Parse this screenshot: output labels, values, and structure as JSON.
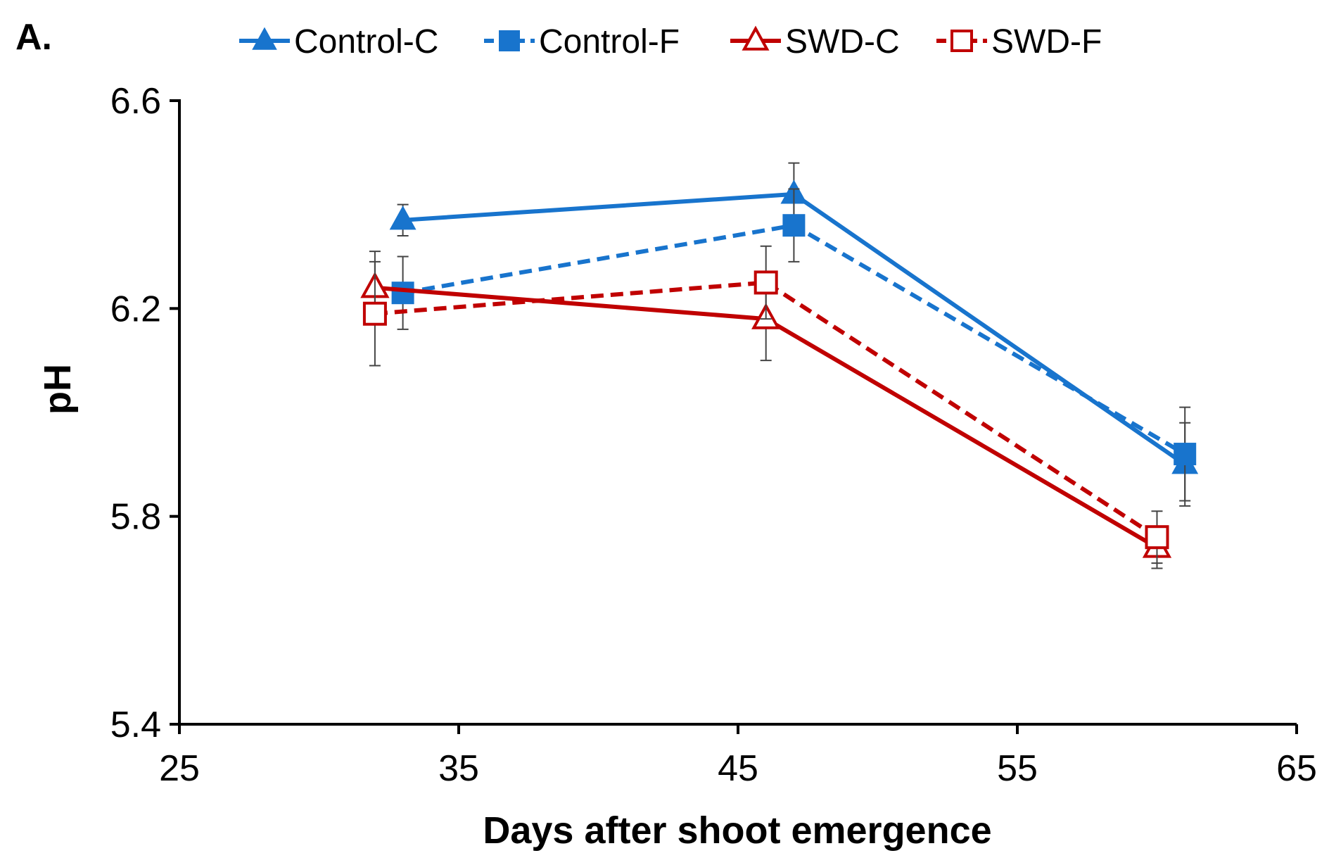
{
  "panel_label": "A.",
  "chart_data": {
    "type": "line",
    "xlabel": "Days after shoot emergence",
    "ylabel": "pH",
    "xlim": [
      25,
      65
    ],
    "ylim": [
      5.4,
      6.6
    ],
    "x_ticks": [
      25,
      35,
      45,
      55,
      65
    ],
    "y_ticks": [
      5.4,
      5.8,
      6.2,
      6.6
    ],
    "x_tick_labels": [
      "25",
      "35",
      "45",
      "55",
      "65"
    ],
    "y_tick_labels": [
      "5.4",
      "5.8",
      "6.2",
      "6.6"
    ],
    "grid": false,
    "legend_position": "top",
    "series": [
      {
        "name": "Control-C",
        "color": "#1874CD",
        "line": "solid",
        "marker": "triangle",
        "filled": true,
        "x": [
          33,
          47,
          61
        ],
        "y": [
          6.37,
          6.42,
          5.9
        ],
        "err": [
          0.03,
          0.06,
          0.08
        ]
      },
      {
        "name": "Control-F",
        "color": "#1874CD",
        "line": "dashed",
        "marker": "square",
        "filled": true,
        "x": [
          33,
          47,
          61
        ],
        "y": [
          6.23,
          6.36,
          5.92
        ],
        "err": [
          0.07,
          0.07,
          0.09
        ]
      },
      {
        "name": "SWD-C",
        "color": "#C00000",
        "line": "solid",
        "marker": "triangle",
        "filled": false,
        "x": [
          32,
          46,
          60
        ],
        "y": [
          6.24,
          6.18,
          5.74
        ],
        "err": [
          0.07,
          0.08,
          0.04
        ]
      },
      {
        "name": "SWD-F",
        "color": "#C00000",
        "line": "dashed",
        "marker": "square",
        "filled": false,
        "x": [
          32,
          46,
          60
        ],
        "y": [
          6.19,
          6.25,
          5.76
        ],
        "err": [
          0.1,
          0.07,
          0.05
        ]
      }
    ]
  }
}
